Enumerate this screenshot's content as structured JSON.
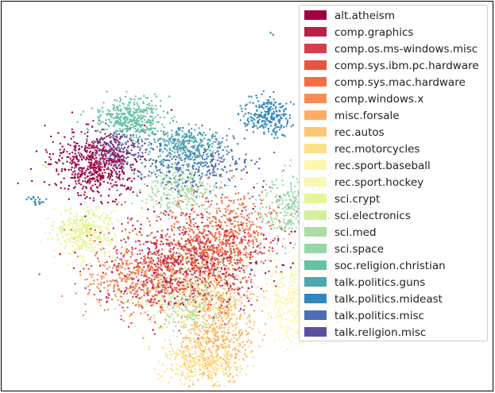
{
  "chart_data": {
    "type": "scatter",
    "title": "",
    "xlabel": "",
    "ylabel": "",
    "grid": false,
    "axes_ticks": false,
    "legend_position": "top-right",
    "series": [
      {
        "name": "alt.atheism",
        "color": "#9e0142",
        "clusters": [
          [
            0.19,
            0.42,
            0.045,
            0.04,
            500
          ],
          [
            0.42,
            0.64,
            0.13,
            0.09,
            120
          ]
        ]
      },
      {
        "name": "comp.graphics",
        "color": "#b8204a",
        "clusters": [
          [
            0.38,
            0.67,
            0.08,
            0.06,
            350
          ],
          [
            0.2,
            0.4,
            0.03,
            0.03,
            80
          ]
        ]
      },
      {
        "name": "comp.os.ms-windows.misc",
        "color": "#d53e4f",
        "clusters": [
          [
            0.34,
            0.69,
            0.07,
            0.06,
            320
          ]
        ]
      },
      {
        "name": "comp.sys.ibm.pc.hardware",
        "color": "#e8553f",
        "clusters": [
          [
            0.36,
            0.66,
            0.07,
            0.05,
            320
          ]
        ]
      },
      {
        "name": "comp.sys.mac.hardware",
        "color": "#f46d43",
        "clusters": [
          [
            0.44,
            0.63,
            0.05,
            0.05,
            380
          ],
          [
            0.46,
            0.56,
            0.05,
            0.05,
            200
          ]
        ]
      },
      {
        "name": "comp.windows.x",
        "color": "#f68d52",
        "clusters": [
          [
            0.27,
            0.72,
            0.05,
            0.04,
            320
          ]
        ]
      },
      {
        "name": "misc.forsale",
        "color": "#fdae61",
        "clusters": [
          [
            0.44,
            0.84,
            0.04,
            0.07,
            350
          ]
        ]
      },
      {
        "name": "rec.autos",
        "color": "#fdc776",
        "clusters": [
          [
            0.43,
            0.78,
            0.04,
            0.05,
            280
          ]
        ]
      },
      {
        "name": "rec.motorcycles",
        "color": "#fee08b",
        "clusters": [
          [
            0.41,
            0.92,
            0.04,
            0.03,
            400
          ]
        ]
      },
      {
        "name": "rec.sport.baseball",
        "color": "#fff6a8",
        "clusters": [
          [
            0.61,
            0.78,
            0.04,
            0.05,
            350
          ]
        ]
      },
      {
        "name": "rec.sport.hockey",
        "color": "#f5f9b2",
        "clusters": [
          [
            0.64,
            0.72,
            0.04,
            0.04,
            400
          ]
        ]
      },
      {
        "name": "sci.crypt",
        "color": "#e6f598",
        "clusters": [
          [
            0.17,
            0.59,
            0.03,
            0.03,
            400
          ]
        ]
      },
      {
        "name": "sci.electronics",
        "color": "#d6ee9b",
        "clusters": [
          [
            0.38,
            0.75,
            0.05,
            0.05,
            300
          ]
        ]
      },
      {
        "name": "sci.med",
        "color": "#abdda4",
        "clusters": [
          [
            0.36,
            0.48,
            0.04,
            0.03,
            300
          ],
          [
            0.38,
            0.8,
            0.03,
            0.03,
            80
          ]
        ]
      },
      {
        "name": "sci.space",
        "color": "#98d6a7",
        "clusters": [
          [
            0.6,
            0.53,
            0.035,
            0.045,
            350
          ]
        ]
      },
      {
        "name": "soc.religion.christian",
        "color": "#66c2a5",
        "clusters": [
          [
            0.26,
            0.3,
            0.035,
            0.025,
            400
          ]
        ]
      },
      {
        "name": "talk.politics.guns",
        "color": "#4ea6b0",
        "clusters": [
          [
            0.38,
            0.37,
            0.035,
            0.025,
            320
          ]
        ]
      },
      {
        "name": "talk.politics.mideast",
        "color": "#3288bd",
        "clusters": [
          [
            0.54,
            0.29,
            0.025,
            0.025,
            250
          ],
          [
            0.07,
            0.51,
            0.008,
            0.008,
            20
          ]
        ]
      },
      {
        "name": "talk.politics.misc",
        "color": "#4a6fb6",
        "clusters": [
          [
            0.39,
            0.42,
            0.06,
            0.04,
            320
          ]
        ]
      },
      {
        "name": "talk.religion.misc",
        "color": "#5e4fa2",
        "clusters": [
          [
            0.23,
            0.38,
            0.03,
            0.025,
            200
          ]
        ]
      }
    ],
    "stray_points": [
      {
        "series": 16,
        "x": 0.547,
        "y": 0.08
      },
      {
        "series": 16,
        "x": 0.552,
        "y": 0.085
      },
      {
        "series": 12,
        "x": 0.085,
        "y": 0.42
      },
      {
        "series": 12,
        "x": 0.09,
        "y": 0.425
      },
      {
        "series": 14,
        "x": 0.962,
        "y": 0.61
      }
    ]
  }
}
